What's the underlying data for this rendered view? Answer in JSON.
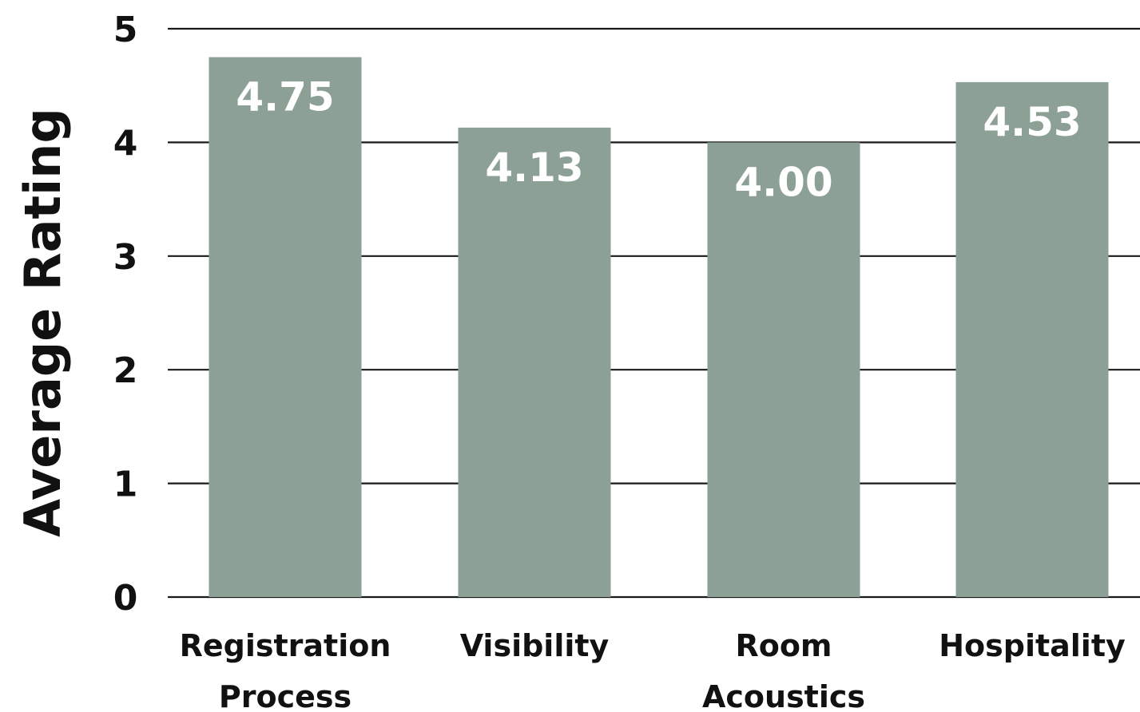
{
  "chart_data": {
    "type": "bar",
    "title": "",
    "xlabel": "",
    "ylabel": "Average Rating",
    "categories": [
      [
        "Registration",
        "Process"
      ],
      [
        "Visibility"
      ],
      [
        "Room",
        "Acoustics"
      ],
      [
        "Hospitality"
      ]
    ],
    "values": [
      4.75,
      4.13,
      4.0,
      4.53
    ],
    "data_labels": [
      "4.75",
      "4.13",
      "4.00",
      "4.53"
    ],
    "ylim": [
      0,
      5
    ],
    "yticks": [
      "0",
      "1",
      "2",
      "3",
      "4",
      "5"
    ],
    "grid": true,
    "legend": "none",
    "bar_color": "#8ca096",
    "label_color": "#ffffff"
  }
}
